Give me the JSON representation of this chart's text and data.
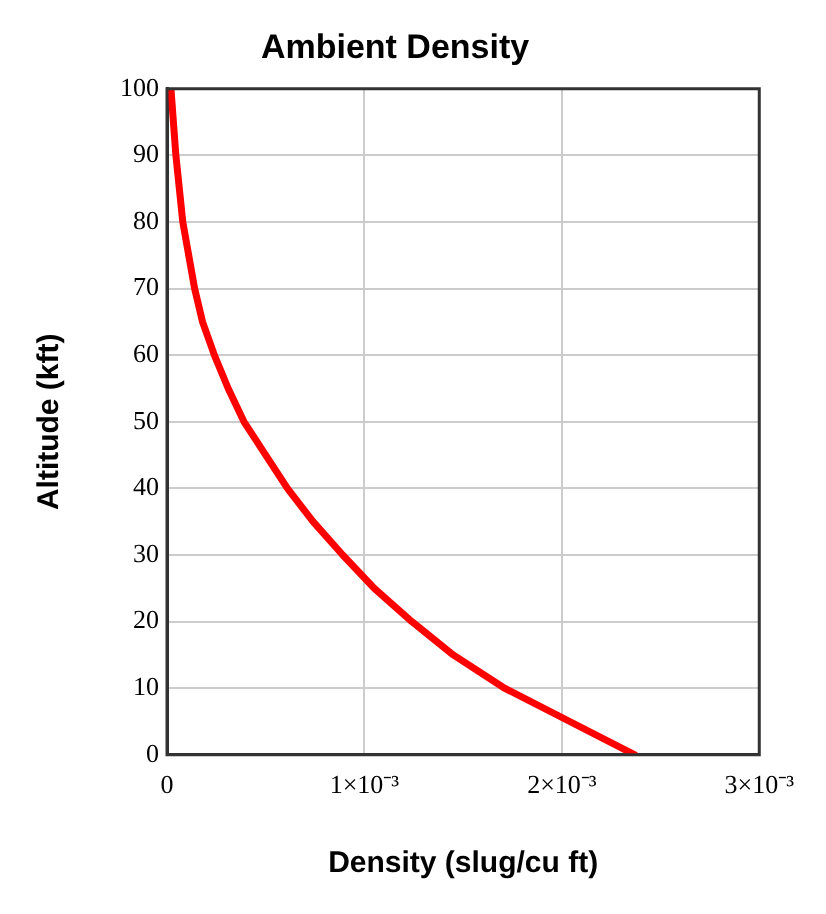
{
  "chart_data": {
    "type": "line",
    "title": "Ambient Density",
    "xlabel": "Density (slug/cu ft)",
    "ylabel": "Altitude (kft)",
    "x": [
      0.00237,
      0.00204,
      0.00171,
      0.00145,
      0.00124,
      0.00105,
      0.00089,
      0.00074,
      0.00061,
      0.0005,
      0.00039,
      0.00031,
      0.00024,
      0.00018,
      0.00014,
      8e-05,
      4.5e-05,
      2e-05
    ],
    "series": [
      {
        "color": "#ff0000",
        "values": [
          0,
          5,
          10,
          15,
          20,
          25,
          30,
          35,
          40,
          45,
          50,
          55,
          60,
          65,
          70,
          80,
          90,
          100
        ]
      }
    ],
    "xlim": [
      0,
      0.003
    ],
    "xticks": [
      0,
      {
        "value": 0.001,
        "label": "1×10⁻³"
      },
      {
        "value": 0.002,
        "label": "2×10⁻³"
      },
      {
        "value": 0.003,
        "label": "3×10⁻³"
      }
    ],
    "ylim": [
      0,
      100
    ],
    "yticks": [
      0,
      10,
      20,
      30,
      40,
      50,
      60,
      70,
      80,
      90,
      100
    ],
    "grid": true,
    "legend": false,
    "marker": "none",
    "line_style": "solid"
  }
}
